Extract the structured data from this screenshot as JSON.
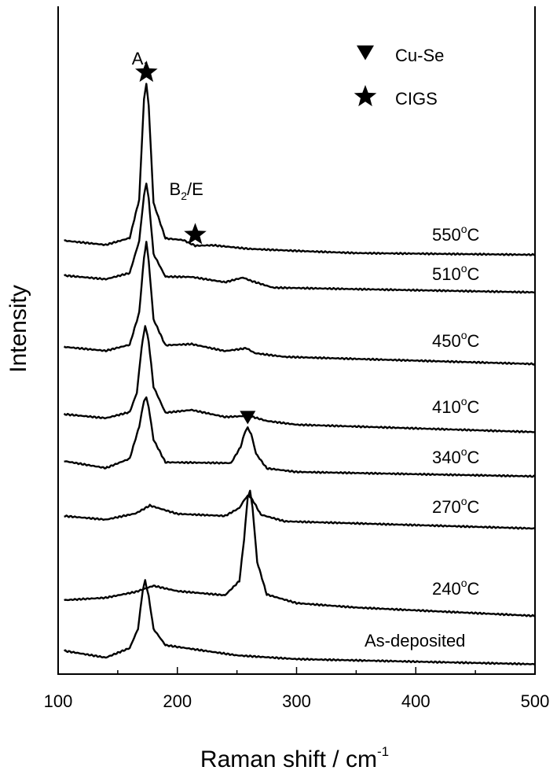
{
  "chart_data": {
    "type": "line",
    "xlabel": "Raman shift / cm",
    "xlabel_sup": "-1",
    "ylabel": "Intensity",
    "xlim": [
      100,
      500
    ],
    "x_ticks": [
      100,
      200,
      300,
      400,
      500
    ],
    "x_minor_step": 50,
    "grid": false,
    "legend": {
      "position": "top-right",
      "entries": [
        {
          "label": "Cu-Se",
          "marker": "triangle-down"
        },
        {
          "label": "CIGS",
          "marker": "star"
        }
      ]
    },
    "peak_labels": [
      {
        "base": "A",
        "sub": "1",
        "tail": "",
        "x": 173
      },
      {
        "base": "B",
        "sub": "2",
        "tail": "/E",
        "x": 215
      }
    ],
    "peak_markers": [
      {
        "marker": "star",
        "x": 174,
        "series": "550°C"
      },
      {
        "marker": "star",
        "x": 215,
        "series": "550°C"
      },
      {
        "marker": "triangle-down",
        "x": 259,
        "series": "340°C"
      }
    ],
    "series": [
      {
        "name": "550",
        "unit": "°C",
        "label_text": "550",
        "label_sup": "o",
        "label_unit": "C",
        "points": [
          [
            105,
            0.3
          ],
          [
            140,
            0.18
          ],
          [
            160,
            0.4
          ],
          [
            168,
            1.6
          ],
          [
            172,
            4.7
          ],
          [
            174,
            5.2
          ],
          [
            176,
            4.5
          ],
          [
            180,
            1.5
          ],
          [
            190,
            0.4
          ],
          [
            205,
            0.35
          ],
          [
            215,
            0.18
          ],
          [
            230,
            0.2
          ],
          [
            260,
            0.1
          ],
          [
            300,
            0.05
          ],
          [
            350,
            0.0
          ],
          [
            500,
            0.0
          ]
        ]
      },
      {
        "name": "510",
        "unit": "°C",
        "label_text": "510",
        "label_sup": "o",
        "label_unit": "C",
        "points": [
          [
            105,
            0.3
          ],
          [
            140,
            0.2
          ],
          [
            160,
            0.4
          ],
          [
            168,
            1.4
          ],
          [
            172,
            2.8
          ],
          [
            174,
            3.2
          ],
          [
            176,
            2.7
          ],
          [
            180,
            1.0
          ],
          [
            190,
            0.3
          ],
          [
            212,
            0.3
          ],
          [
            240,
            0.15
          ],
          [
            255,
            0.3
          ],
          [
            262,
            0.2
          ],
          [
            280,
            0.0
          ],
          [
            500,
            -0.05
          ]
        ]
      },
      {
        "name": "450",
        "unit": "°C",
        "label_text": "450",
        "label_sup": "o",
        "label_unit": "C",
        "points": [
          [
            105,
            0.3
          ],
          [
            140,
            0.2
          ],
          [
            160,
            0.4
          ],
          [
            168,
            1.4
          ],
          [
            172,
            3.1
          ],
          [
            174,
            3.6
          ],
          [
            176,
            3.0
          ],
          [
            180,
            1.2
          ],
          [
            190,
            0.4
          ],
          [
            212,
            0.45
          ],
          [
            240,
            0.25
          ],
          [
            258,
            0.35
          ],
          [
            265,
            0.2
          ],
          [
            290,
            0.1
          ],
          [
            500,
            0.0
          ]
        ]
      },
      {
        "name": "410",
        "unit": "°C",
        "label_text": "410",
        "label_sup": "o",
        "label_unit": "C",
        "points": [
          [
            105,
            0.3
          ],
          [
            140,
            0.2
          ],
          [
            160,
            0.4
          ],
          [
            166,
            1.0
          ],
          [
            170,
            2.4
          ],
          [
            173,
            3.1
          ],
          [
            176,
            2.6
          ],
          [
            180,
            1.2
          ],
          [
            190,
            0.4
          ],
          [
            212,
            0.5
          ],
          [
            240,
            0.3
          ],
          [
            260,
            0.35
          ],
          [
            275,
            0.2
          ],
          [
            300,
            0.1
          ],
          [
            500,
            0.0
          ]
        ]
      },
      {
        "name": "340",
        "unit": "°C",
        "label_text": "340",
        "label_sup": "o",
        "label_unit": "C",
        "points": [
          [
            105,
            0.3
          ],
          [
            140,
            0.1
          ],
          [
            160,
            0.4
          ],
          [
            168,
            1.4
          ],
          [
            172,
            2.2
          ],
          [
            174,
            2.3
          ],
          [
            176,
            2.0
          ],
          [
            180,
            1.0
          ],
          [
            190,
            0.3
          ],
          [
            215,
            0.3
          ],
          [
            245,
            0.3
          ],
          [
            253,
            0.8
          ],
          [
            257,
            1.3
          ],
          [
            259,
            1.4
          ],
          [
            262,
            1.2
          ],
          [
            266,
            0.6
          ],
          [
            275,
            0.15
          ],
          [
            300,
            0.05
          ],
          [
            500,
            0.0
          ]
        ]
      },
      {
        "name": "270",
        "unit": "°C",
        "label_text": "270",
        "label_sup": "o",
        "label_unit": "C",
        "points": [
          [
            105,
            0.2
          ],
          [
            140,
            0.1
          ],
          [
            165,
            0.3
          ],
          [
            177,
            0.55
          ],
          [
            200,
            0.3
          ],
          [
            240,
            0.25
          ],
          [
            252,
            0.5
          ],
          [
            257,
            0.8
          ],
          [
            260,
            0.9
          ],
          [
            264,
            0.7
          ],
          [
            270,
            0.3
          ],
          [
            290,
            0.1
          ],
          [
            500,
            -0.05
          ]
        ]
      },
      {
        "name": "240",
        "unit": "°C",
        "label_text": "240",
        "label_sup": "o",
        "label_unit": "C",
        "points": [
          [
            105,
            0.2
          ],
          [
            140,
            0.3
          ],
          [
            165,
            0.5
          ],
          [
            180,
            0.7
          ],
          [
            200,
            0.55
          ],
          [
            240,
            0.45
          ],
          [
            252,
            0.9
          ],
          [
            256,
            2.2
          ],
          [
            259,
            3.5
          ],
          [
            261,
            3.7
          ],
          [
            263,
            3.2
          ],
          [
            267,
            1.5
          ],
          [
            275,
            0.5
          ],
          [
            300,
            0.25
          ],
          [
            350,
            0.15
          ],
          [
            500,
            0.0
          ]
        ]
      },
      {
        "name": "As-deposited",
        "unit": "",
        "label_text": "As-deposited",
        "label_sup": "",
        "label_unit": "",
        "points": [
          [
            105,
            0.3
          ],
          [
            140,
            0.1
          ],
          [
            160,
            0.4
          ],
          [
            167,
            1.0
          ],
          [
            171,
            2.2
          ],
          [
            173,
            2.5
          ],
          [
            176,
            2.0
          ],
          [
            180,
            1.0
          ],
          [
            190,
            0.5
          ],
          [
            210,
            0.4
          ],
          [
            250,
            0.2
          ],
          [
            300,
            0.1
          ],
          [
            500,
            0.0
          ]
        ]
      }
    ]
  }
}
